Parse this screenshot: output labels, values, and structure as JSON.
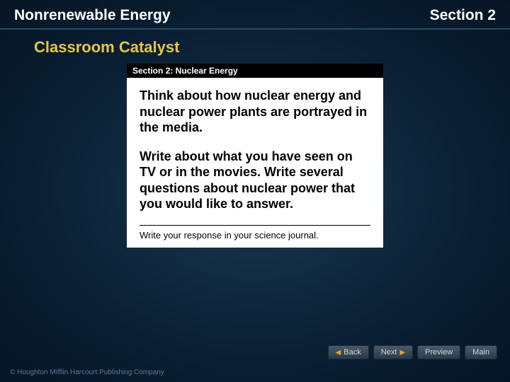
{
  "header": {
    "title": "Nonrenewable Energy",
    "section": "Section 2"
  },
  "subtitle": "Classroom Catalyst",
  "content": {
    "section_bar": "Section 2: Nuclear Energy",
    "para1": "Think about how nuclear energy and nuclear power plants are portrayed in the media.",
    "para2": "Write about what you have seen on TV or in the movies. Write several questions about nuclear power that you would like to answer.",
    "journal_note": "Write your response in your science journal."
  },
  "nav": {
    "back": "Back",
    "next": "Next",
    "preview": "Preview",
    "main": "Main"
  },
  "copyright": "© Houghton Mifflin Harcourt Publishing Company",
  "colors": {
    "bg_center": "#1a3a52",
    "bg_outer": "#051525",
    "subtitle_color": "#e8c547",
    "header_text": "#ffffff",
    "content_bg": "#ffffff",
    "section_bar_bg": "#000000",
    "nav_arrow": "#e8a030"
  }
}
